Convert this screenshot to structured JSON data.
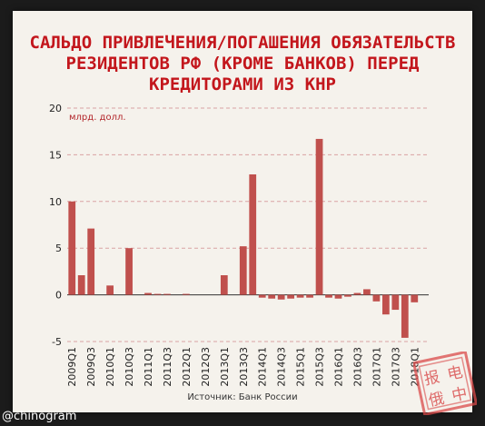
{
  "title": "САЛЬДО ПРИВЛЕЧЕНИЯ/ПОГАШЕНИЯ ОБЯЗАТЕЛЬСТВ РЕЗИДЕНТОВ РФ (КРОМЕ БАНКОВ) ПЕРЕД КРЕДИТОРАМИ ИЗ КНР",
  "watermark": "@chinogram",
  "seal_text": "电报中俄",
  "colors": {
    "bar": "#c0504d",
    "title": "#c3161c",
    "grid": "#d9a3a3",
    "paper": "#f5f2ec"
  },
  "chart_data": {
    "type": "bar",
    "title": "САЛЬДО ПРИВЛЕЧЕНИЯ/ПОГАШЕНИЯ ОБЯЗАТЕЛЬСТВ РЕЗИДЕНТОВ РФ (КРОМЕ БАНКОВ) ПЕРЕД КРЕДИТОРАМИ ИЗ КНР",
    "unit_label": "млрд. долл.",
    "source": "Источник: Банк России",
    "ylim": [
      -5,
      20
    ],
    "yticks": [
      -5,
      0,
      5,
      10,
      15,
      20
    ],
    "grid": true,
    "categories": [
      "2009Q1",
      "2009Q2",
      "2009Q3",
      "2009Q4",
      "2010Q1",
      "2010Q2",
      "2010Q3",
      "2010Q4",
      "2011Q1",
      "2011Q2",
      "2011Q3",
      "2011Q4",
      "2012Q1",
      "2012Q2",
      "2012Q3",
      "2012Q4",
      "2013Q1",
      "2013Q2",
      "2013Q3",
      "2013Q4",
      "2014Q1",
      "2014Q2",
      "2014Q3",
      "2014Q4",
      "2015Q1",
      "2015Q2",
      "2015Q3",
      "2015Q4",
      "2016Q1",
      "2016Q2",
      "2016Q3",
      "2016Q4",
      "2017Q1",
      "2017Q2",
      "2017Q3",
      "2017Q4",
      "2018Q1",
      "2018Q2"
    ],
    "tick_labels": [
      "2009Q1",
      "2009Q3",
      "2010Q1",
      "2010Q3",
      "2011Q1",
      "2011Q3",
      "2012Q1",
      "2012Q3",
      "2013Q1",
      "2013Q3",
      "2014Q1",
      "2014Q3",
      "2015Q1",
      "2015Q3",
      "2016Q1",
      "2016Q3",
      "2017Q1",
      "2017Q3",
      "2018Q1"
    ],
    "values": [
      10.0,
      2.1,
      7.1,
      0,
      1.0,
      0,
      5.0,
      0,
      0.2,
      0.1,
      0.1,
      0,
      0.1,
      0,
      0,
      0,
      2.1,
      0,
      5.2,
      12.9,
      -0.3,
      -0.4,
      -0.5,
      -0.4,
      -0.3,
      -0.3,
      16.7,
      -0.3,
      -0.4,
      -0.2,
      0.2,
      0.6,
      -0.7,
      -2.1,
      -1.6,
      -4.6,
      -0.8,
      0
    ]
  }
}
